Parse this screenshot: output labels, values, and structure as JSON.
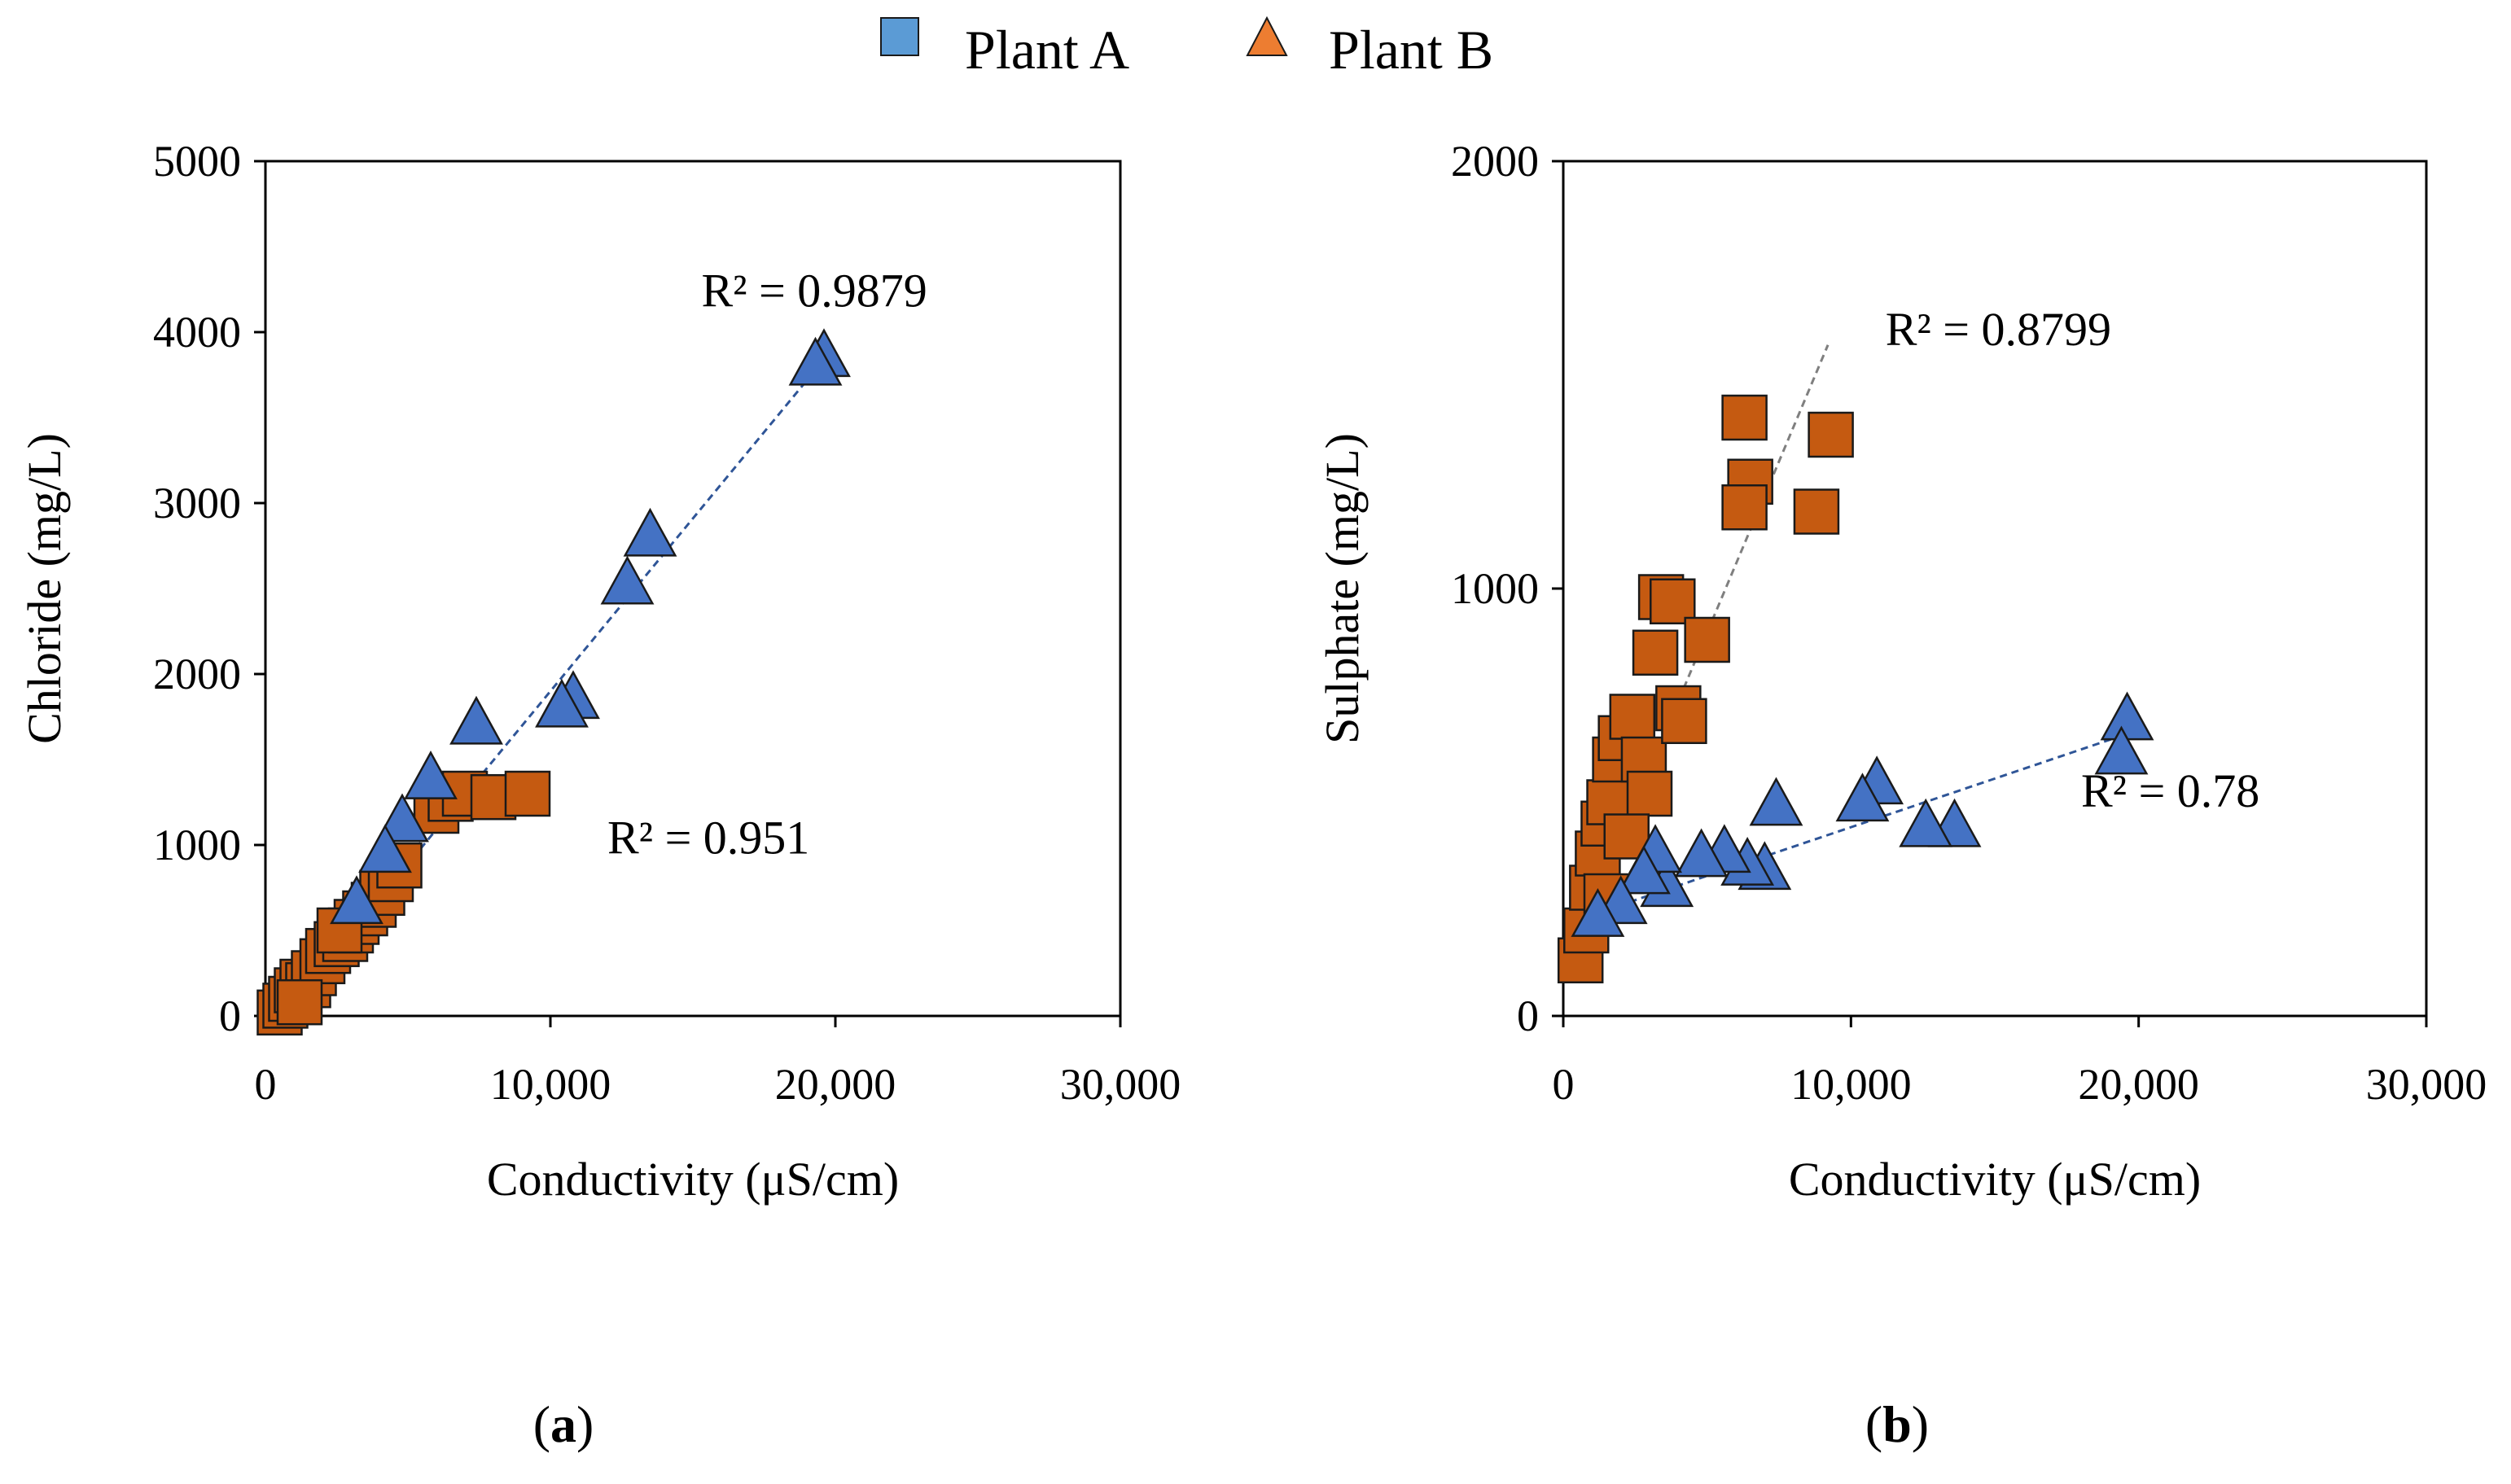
{
  "legend": {
    "items": [
      {
        "label": "Plant A",
        "marker": "square",
        "color": "#5b9bd5"
      },
      {
        "label": "Plant B",
        "marker": "triangle",
        "color": "#ed7d31"
      }
    ]
  },
  "colors": {
    "plant_a_square_fill": "#c55a11",
    "plant_b_triangle_fill": "#4472c4",
    "trend_a": "#7f7f7f",
    "trend_b": "#2f5597"
  },
  "chart_data": [
    {
      "type": "scatter",
      "panel_label": "a",
      "title": "",
      "xlabel": "Conductivity (μS/cm)",
      "ylabel": "Chloride (mg/L)",
      "xlim": [
        0,
        30000
      ],
      "ylim": [
        0,
        5000
      ],
      "x_ticks": [
        0,
        10000,
        20000,
        30000
      ],
      "x_tick_labels": [
        "0",
        "10,000",
        "20,000",
        "30,000"
      ],
      "y_ticks": [
        0,
        1000,
        2000,
        3000,
        4000,
        5000
      ],
      "y_tick_labels": [
        "0",
        "1000",
        "2000",
        "3000",
        "4000",
        "5000"
      ],
      "series": [
        {
          "name": "Plant A",
          "marker": "square",
          "points": [
            [
              500,
              20
            ],
            [
              700,
              60
            ],
            [
              900,
              100
            ],
            [
              1100,
              150
            ],
            [
              1300,
              200
            ],
            [
              1500,
              180
            ],
            [
              1700,
              250
            ],
            [
              2000,
              320
            ],
            [
              2200,
              380
            ],
            [
              2500,
              420
            ],
            [
              2800,
              450
            ],
            [
              3000,
              500
            ],
            [
              3200,
              550
            ],
            [
              3500,
              600
            ],
            [
              3800,
              650
            ],
            [
              4100,
              720
            ],
            [
              4400,
              800
            ],
            [
              4700,
              880
            ],
            [
              6000,
              1200
            ],
            [
              6500,
              1270
            ],
            [
              7000,
              1300
            ],
            [
              8000,
              1280
            ],
            [
              9200,
              1300
            ],
            [
              1200,
              80
            ],
            [
              2600,
              500
            ]
          ],
          "trendline": {
            "x": [
              900,
              6800
            ],
            "y": [
              60,
              1320
            ]
          },
          "r2_label": "R² = 0.951",
          "r2_at": [
            12000,
            950
          ]
        },
        {
          "name": "Plant B",
          "marker": "triangle",
          "points": [
            [
              19600,
              3850
            ],
            [
              19300,
              3800
            ],
            [
              13500,
              2800
            ],
            [
              12700,
              2520
            ],
            [
              10800,
              1850
            ],
            [
              10400,
              1800
            ],
            [
              7400,
              1700
            ],
            [
              5800,
              1380
            ],
            [
              4800,
              1130
            ],
            [
              4200,
              950
            ],
            [
              3200,
              650
            ]
          ],
          "trendline": {
            "x": [
              800,
              19800
            ],
            "y": [
              40,
              3880
            ]
          },
          "r2_label": "R² = 0.9879",
          "r2_at": [
            15300,
            4150
          ]
        }
      ]
    },
    {
      "type": "scatter",
      "panel_label": "b",
      "title": "",
      "xlabel": "Conductivity (μS/cm)",
      "ylabel": "Sulphate (mg/L)",
      "xlim": [
        0,
        30000
      ],
      "ylim": [
        0,
        2000
      ],
      "x_ticks": [
        0,
        10000,
        20000,
        30000
      ],
      "x_tick_labels": [
        "0",
        "10,000",
        "20,000",
        "30,000"
      ],
      "y_ticks": [
        0,
        1000,
        2000
      ],
      "y_tick_labels": [
        "0",
        "1000",
        "2000"
      ],
      "series": [
        {
          "name": "Plant A",
          "marker": "square",
          "points": [
            [
              600,
              130
            ],
            [
              800,
              200
            ],
            [
              1000,
              300
            ],
            [
              1200,
              380
            ],
            [
              1400,
              450
            ],
            [
              1600,
              500
            ],
            [
              1800,
              600
            ],
            [
              2000,
              650
            ],
            [
              2400,
              700
            ],
            [
              2800,
              600
            ],
            [
              3000,
              520
            ],
            [
              3200,
              850
            ],
            [
              3400,
              980
            ],
            [
              3800,
              970
            ],
            [
              4000,
              720
            ],
            [
              4200,
              690
            ],
            [
              5000,
              880
            ],
            [
              6300,
              1400
            ],
            [
              6500,
              1250
            ],
            [
              6300,
              1190
            ],
            [
              9300,
              1360
            ],
            [
              8800,
              1180
            ],
            [
              1500,
              280
            ],
            [
              2200,
              420
            ]
          ],
          "trendline": {
            "x": [
              900,
              9200
            ],
            "y": [
              240,
              1570
            ]
          },
          "r2_label": "R² = 0.8799",
          "r2_at": [
            11200,
            1570
          ]
        },
        {
          "name": "Plant B",
          "marker": "triangle",
          "points": [
            [
              19600,
              690
            ],
            [
              19400,
              610
            ],
            [
              13600,
              440
            ],
            [
              12600,
              440
            ],
            [
              10900,
              540
            ],
            [
              10400,
              500
            ],
            [
              7400,
              490
            ],
            [
              7000,
              340
            ],
            [
              6400,
              350
            ],
            [
              5600,
              380
            ],
            [
              4800,
              370
            ],
            [
              3600,
              300
            ],
            [
              3200,
              380
            ],
            [
              2800,
              330
            ],
            [
              2000,
              260
            ],
            [
              1200,
              230
            ]
          ],
          "trendline": {
            "x": [
              700,
              19600
            ],
            "y": [
              230,
              660
            ]
          },
          "r2_label": "R² = 0.78",
          "r2_at": [
            18000,
            490
          ]
        }
      ]
    }
  ]
}
